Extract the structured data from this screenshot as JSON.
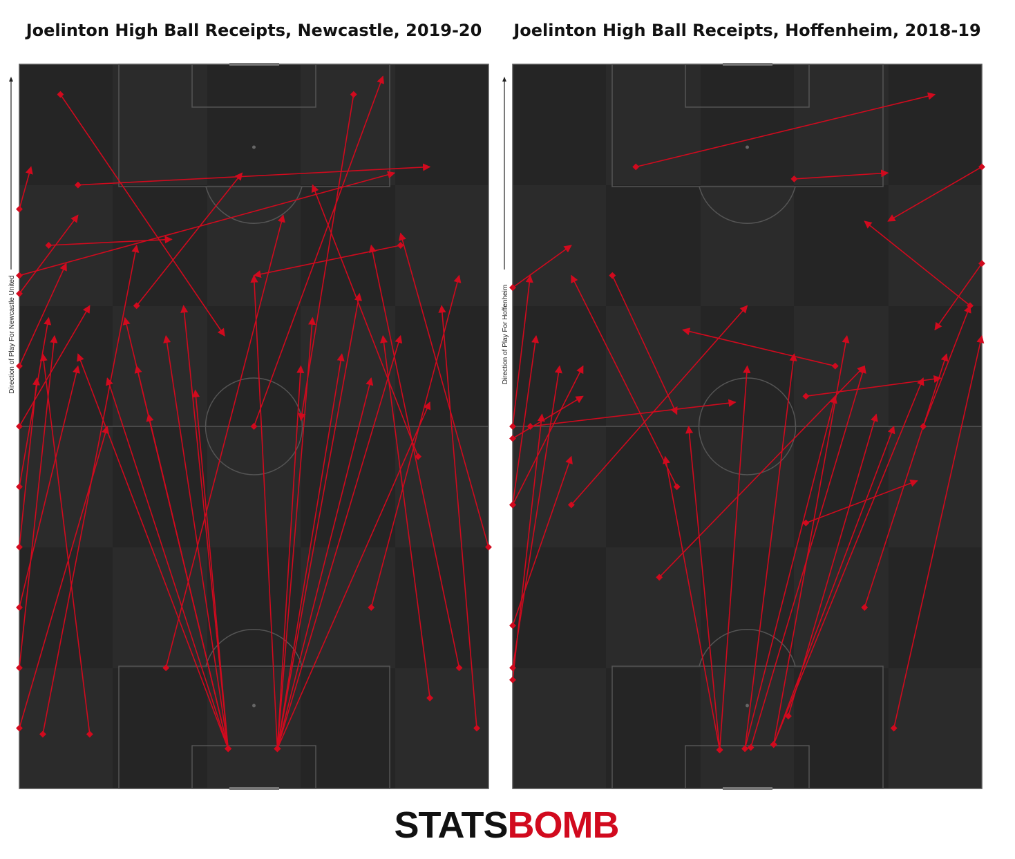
{
  "chart_data": [
    {
      "type": "arrows",
      "title": "Joelinton High Ball Receipts, Newcastle, 2019-20",
      "direction_label": "Direction of Play For Newcastle United",
      "color": "#d10a1e",
      "xlim": [
        0,
        80
      ],
      "ylim": [
        0,
        120
      ],
      "passes": [
        [
          35.6,
          6.6,
          20,
          70
        ],
        [
          35.6,
          6.6,
          25,
          75
        ],
        [
          35.6,
          6.6,
          15,
          68
        ],
        [
          35.6,
          6.6,
          28,
          80
        ],
        [
          35.6,
          6.6,
          10,
          72
        ],
        [
          35.6,
          6.6,
          22,
          62
        ],
        [
          35.6,
          6.6,
          18,
          78
        ],
        [
          35.6,
          6.6,
          30,
          66
        ],
        [
          44,
          6.6,
          55,
          72
        ],
        [
          44,
          6.6,
          60,
          68
        ],
        [
          44,
          6.6,
          50,
          78
        ],
        [
          44,
          6.6,
          65,
          75
        ],
        [
          44,
          6.6,
          58,
          82
        ],
        [
          44,
          6.6,
          70,
          64
        ],
        [
          44,
          6.6,
          48,
          70
        ],
        [
          44,
          6.6,
          40,
          85
        ],
        [
          0,
          96,
          2,
          103
        ],
        [
          0,
          82,
          10,
          95
        ],
        [
          0,
          70,
          8,
          87
        ],
        [
          0,
          60,
          12,
          80
        ],
        [
          0,
          50,
          5,
          78
        ],
        [
          0,
          40,
          3,
          68
        ],
        [
          0,
          30,
          10,
          70
        ],
        [
          0,
          20,
          6,
          75
        ],
        [
          0,
          10,
          15,
          60
        ],
        [
          4,
          9,
          20,
          90
        ],
        [
          12,
          9,
          4,
          72
        ],
        [
          25,
          20,
          45,
          95
        ],
        [
          60,
          30,
          75,
          85
        ],
        [
          75,
          20,
          60,
          90
        ],
        [
          70,
          15,
          62,
          75
        ],
        [
          78,
          10,
          72,
          80
        ],
        [
          80,
          40,
          65,
          92
        ],
        [
          10,
          100,
          70,
          103
        ],
        [
          5,
          90,
          26,
          91
        ],
        [
          0,
          85,
          64,
          102
        ],
        [
          57,
          115,
          48,
          61
        ],
        [
          65,
          90,
          40,
          85
        ],
        [
          7,
          115,
          35,
          75
        ],
        [
          68,
          55,
          50,
          100
        ],
        [
          40,
          60,
          62,
          118
        ],
        [
          20,
          80,
          38,
          102
        ]
      ]
    },
    {
      "type": "arrows",
      "title": "Joelinton High Ball Receipts, Hoffenheim, 2018-19",
      "direction_label": "Direction of Play For Hoffenheim",
      "color": "#d10a1e",
      "xlim": [
        0,
        80
      ],
      "ylim": [
        0,
        120
      ],
      "passes": [
        [
          35.3,
          6.4,
          30,
          60
        ],
        [
          35.3,
          6.4,
          40,
          70
        ],
        [
          35.3,
          6.4,
          26,
          55
        ],
        [
          39.6,
          6.6,
          48,
          72
        ],
        [
          39.6,
          6.6,
          55,
          65
        ],
        [
          40.6,
          6.8,
          60,
          70
        ],
        [
          44.5,
          7.3,
          65,
          60
        ],
        [
          44.5,
          7.3,
          57,
          75
        ],
        [
          44.5,
          7.3,
          70,
          68
        ],
        [
          0,
          18,
          5,
          62
        ],
        [
          0,
          20,
          8,
          70
        ],
        [
          0,
          27,
          10,
          55
        ],
        [
          0,
          47,
          4,
          75
        ],
        [
          0,
          58,
          12,
          65
        ],
        [
          0,
          83,
          10,
          90
        ],
        [
          0,
          60,
          3,
          85
        ],
        [
          0,
          47,
          12,
          70
        ],
        [
          21,
          103,
          72,
          115
        ],
        [
          48,
          101,
          64,
          102
        ],
        [
          80,
          103,
          64,
          94
        ],
        [
          80,
          87,
          72,
          76
        ],
        [
          50,
          65,
          73,
          68
        ],
        [
          55,
          70,
          29,
          76
        ],
        [
          3,
          60,
          38,
          64
        ],
        [
          50,
          44,
          69,
          51
        ],
        [
          65,
          10,
          80,
          75
        ],
        [
          47,
          12,
          62,
          62
        ],
        [
          78,
          80,
          60,
          94
        ],
        [
          10,
          47,
          40,
          80
        ],
        [
          25,
          35,
          60,
          70
        ],
        [
          28,
          50,
          10,
          85
        ],
        [
          17,
          85,
          28,
          62
        ],
        [
          70,
          60,
          78,
          80
        ],
        [
          60,
          30,
          74,
          72
        ]
      ]
    }
  ],
  "logo": {
    "left": "STATS",
    "right": "BOMB"
  }
}
